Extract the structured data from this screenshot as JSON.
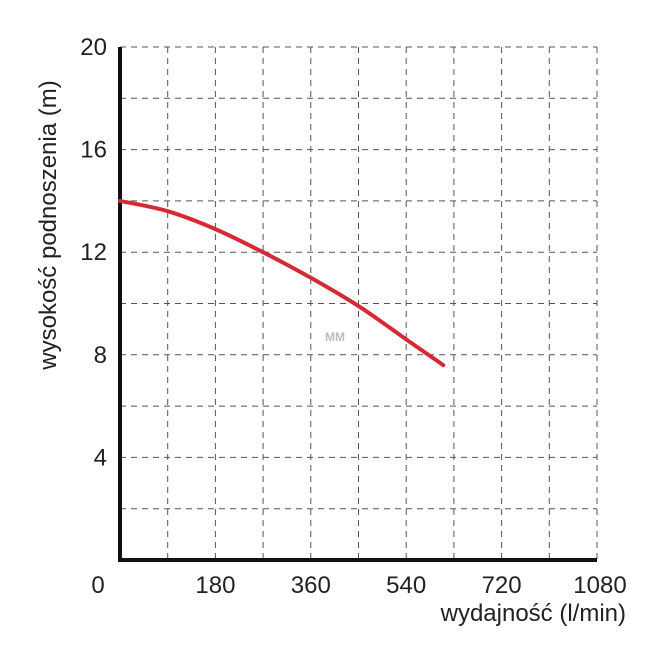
{
  "chart_data": {
    "type": "line",
    "xlabel": "wydajność (l/min)",
    "ylabel": "wysokość podnoszenia (m)",
    "watermark": "MM",
    "x_ticks": [
      "0",
      "180",
      "360",
      "540",
      "720",
      "1080"
    ],
    "y_ticks": [
      "4",
      "8",
      "12",
      "16",
      "20"
    ],
    "xlim": [
      0,
      900
    ],
    "ylim": [
      0,
      20
    ],
    "grid": true,
    "grid_style": "dashed",
    "series": [
      {
        "color": "#d42a36",
        "x": [
          0,
          90,
          180,
          270,
          360,
          450,
          540,
          610
        ],
        "y": [
          14.0,
          13.6,
          12.9,
          12.0,
          11.0,
          9.9,
          8.6,
          7.6
        ]
      }
    ]
  },
  "colors": {
    "axis": "#111111",
    "grid": "#555555",
    "curve": "#d42a36"
  }
}
